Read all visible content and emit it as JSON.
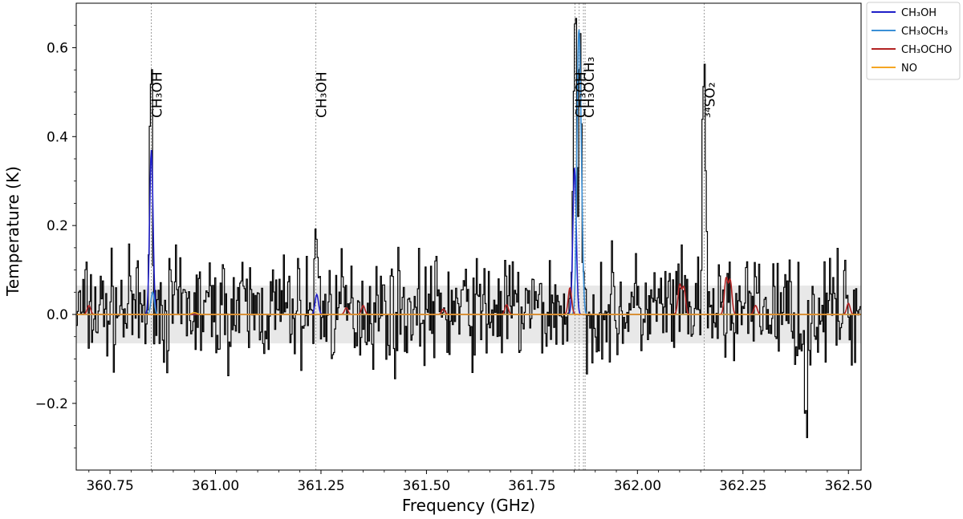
{
  "chart_data": {
    "type": "line",
    "title": "",
    "xlabel": "Frequency (GHz)",
    "ylabel": "Temperature (K)",
    "xlim": [
      360.67,
      362.53
    ],
    "ylim": [
      -0.35,
      0.7
    ],
    "x_ticks": [
      360.75,
      361.0,
      361.25,
      361.5,
      361.75,
      362.0,
      362.25,
      362.5
    ],
    "x_tick_labels": [
      "360.75",
      "361.00",
      "361.25",
      "361.50",
      "361.75",
      "362.00",
      "362.25",
      "362.50"
    ],
    "y_ticks": [
      -0.2,
      0.0,
      0.2,
      0.4,
      0.6
    ],
    "y_tick_labels": [
      "−0.2",
      "0.0",
      "0.2",
      "0.4",
      "0.6"
    ],
    "noise_band": [
      -0.065,
      0.065
    ],
    "grid": false,
    "legend_position": "outside-top-right",
    "legend": [
      {
        "label": "CH₃OH",
        "color": "#1f1fc8"
      },
      {
        "label": "CH₃OCH₃",
        "color": "#3a8fd6"
      },
      {
        "label": "CH₃OCHO",
        "color": "#b22222"
      },
      {
        "label": "NO",
        "color": "#f5a623"
      }
    ],
    "line_markers": [
      {
        "x": 360.848,
        "label": "CH₃OH"
      },
      {
        "x": 361.238,
        "label": "CH₃OH"
      },
      {
        "x": 361.852,
        "label": "CH₃OH"
      },
      {
        "x": 361.862,
        "label": ""
      },
      {
        "x": 361.872,
        "label": "CH₃OCH₃"
      },
      {
        "x": 361.876,
        "label": ""
      },
      {
        "x": 362.158,
        "label": "³⁴SO₂"
      }
    ],
    "observed_peaks": [
      {
        "x": 360.848,
        "y": 0.52
      },
      {
        "x": 361.24,
        "y": 0.18
      },
      {
        "x": 361.852,
        "y": 0.66
      },
      {
        "x": 361.864,
        "y": 0.58
      },
      {
        "x": 362.158,
        "y": 0.55
      },
      {
        "x": 362.4,
        "y": -0.29
      }
    ],
    "series": [
      {
        "name": "CH₃OH",
        "color": "#1f1fc8",
        "lines": [
          {
            "x": 360.848,
            "amp": 0.37,
            "width": 0.004
          },
          {
            "x": 361.24,
            "amp": 0.045,
            "width": 0.004
          },
          {
            "x": 361.851,
            "amp": 0.33,
            "width": 0.004
          }
        ]
      },
      {
        "name": "CH₃OCH₃",
        "color": "#3a8fd6",
        "lines": [
          {
            "x": 361.86,
            "amp": 0.53,
            "width": 0.004
          },
          {
            "x": 361.866,
            "amp": 0.28,
            "width": 0.004
          },
          {
            "x": 360.851,
            "amp": 0.05,
            "width": 0.004
          }
        ]
      },
      {
        "name": "CH₃OCHO",
        "color": "#b22222",
        "lines": [
          {
            "x": 360.7,
            "amp": 0.02,
            "width": 0.004
          },
          {
            "x": 361.31,
            "amp": 0.015,
            "width": 0.004
          },
          {
            "x": 361.35,
            "amp": 0.02,
            "width": 0.004
          },
          {
            "x": 361.54,
            "amp": 0.012,
            "width": 0.004
          },
          {
            "x": 361.69,
            "amp": 0.022,
            "width": 0.004
          },
          {
            "x": 361.84,
            "amp": 0.06,
            "width": 0.004
          },
          {
            "x": 362.1,
            "amp": 0.065,
            "width": 0.004
          },
          {
            "x": 362.11,
            "amp": 0.06,
            "width": 0.004
          },
          {
            "x": 362.21,
            "amp": 0.08,
            "width": 0.004
          },
          {
            "x": 362.22,
            "amp": 0.075,
            "width": 0.004
          },
          {
            "x": 362.28,
            "amp": 0.02,
            "width": 0.004
          },
          {
            "x": 362.5,
            "amp": 0.025,
            "width": 0.004
          }
        ]
      },
      {
        "name": "NO",
        "color": "#f5a623",
        "lines": [
          {
            "x": 360.95,
            "amp": 0.004,
            "width": 0.006
          }
        ]
      }
    ]
  }
}
